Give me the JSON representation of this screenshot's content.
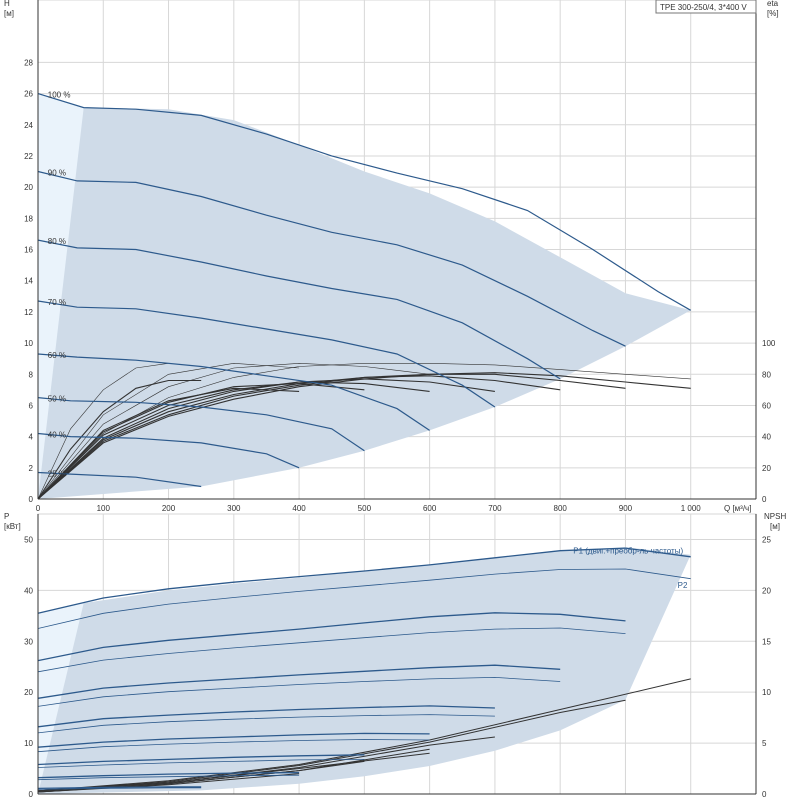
{
  "model_label": "TPE 300-250/4, 3*400 V",
  "colors": {
    "envelope": "#cfdbe8",
    "envelope_light": "#eaf3fb",
    "curve": "#2d5a8c",
    "eff": "#333333",
    "grid": "#d7d7d7"
  },
  "chart_data": [
    {
      "type": "line",
      "name": "qh",
      "left_axis": {
        "label": "H",
        "unit": "[м]",
        "ticks": [
          0,
          2,
          4,
          6,
          8,
          10,
          12,
          14,
          16,
          18,
          20,
          22,
          24,
          26,
          28
        ]
      },
      "right_axis": {
        "label": "eta",
        "unit": "[%]",
        "ticks": [
          0,
          20,
          40,
          60,
          80,
          100
        ]
      },
      "x_axis": {
        "label": "Q [м³/ч]",
        "ticks": [
          "0",
          "100",
          "200",
          "300",
          "400",
          "500",
          "600",
          "700",
          "800",
          "900",
          "1 000"
        ],
        "range": [
          0,
          1100
        ]
      },
      "envelope": [
        [
          0,
          0
        ],
        [
          250,
          0.8
        ],
        [
          400,
          2.0
        ],
        [
          500,
          3.1
        ],
        [
          600,
          4.4
        ],
        [
          700,
          5.9
        ],
        [
          800,
          7.7
        ],
        [
          900,
          9.8
        ],
        [
          1000,
          12.1
        ],
        [
          900,
          13.2
        ],
        [
          800,
          15.5
        ],
        [
          700,
          17.8
        ],
        [
          600,
          19.6
        ],
        [
          500,
          21.0
        ],
        [
          400,
          22.7
        ],
        [
          300,
          24.3
        ],
        [
          200,
          25.0
        ],
        [
          70,
          25.1
        ],
        [
          0,
          26.0
        ]
      ],
      "envelope_light": [
        [
          0,
          0
        ],
        [
          70,
          25.1
        ],
        [
          0,
          26.0
        ]
      ],
      "speed_curves": [
        {
          "label": "100 %",
          "x": [
            0,
            70,
            150,
            250,
            350,
            450,
            550,
            650,
            750,
            850,
            950,
            1000
          ],
          "y": [
            26.0,
            25.1,
            25.0,
            24.6,
            23.4,
            22.0,
            20.9,
            19.9,
            18.5,
            16.0,
            13.3,
            12.1
          ]
        },
        {
          "label": "90 %",
          "x": [
            0,
            60,
            150,
            250,
            350,
            450,
            550,
            650,
            750,
            850,
            900
          ],
          "y": [
            21.0,
            20.4,
            20.3,
            19.4,
            18.2,
            17.1,
            16.3,
            15.0,
            13.0,
            10.8,
            9.8
          ]
        },
        {
          "label": "80 %",
          "x": [
            0,
            60,
            150,
            250,
            350,
            450,
            550,
            650,
            750,
            800
          ],
          "y": [
            16.6,
            16.1,
            16.0,
            15.2,
            14.3,
            13.5,
            12.8,
            11.3,
            9.0,
            7.7
          ]
        },
        {
          "label": "70 %",
          "x": [
            0,
            60,
            150,
            250,
            350,
            450,
            550,
            650,
            700
          ],
          "y": [
            12.7,
            12.3,
            12.2,
            11.6,
            10.9,
            10.2,
            9.3,
            7.3,
            5.9
          ]
        },
        {
          "label": "60 %",
          "x": [
            0,
            60,
            150,
            250,
            350,
            450,
            550,
            600
          ],
          "y": [
            9.3,
            9.1,
            8.9,
            8.5,
            7.9,
            7.3,
            5.8,
            4.4
          ]
        },
        {
          "label": "50 %",
          "x": [
            0,
            50,
            150,
            250,
            350,
            450,
            500
          ],
          "y": [
            6.5,
            6.3,
            6.2,
            5.9,
            5.4,
            4.5,
            3.1
          ]
        },
        {
          "label": "40 %",
          "x": [
            0,
            50,
            150,
            250,
            350,
            400
          ],
          "y": [
            4.2,
            4.0,
            3.9,
            3.6,
            2.9,
            2.0
          ]
        },
        {
          "label": "25 %",
          "x": [
            0,
            50,
            150,
            250
          ],
          "y": [
            1.7,
            1.6,
            1.4,
            0.8
          ]
        }
      ],
      "efficiency_curves": [
        {
          "x": [
            0,
            50,
            100,
            150,
            200,
            250
          ],
          "y": [
            0,
            3.2,
            5.6,
            7.1,
            7.6,
            7.6
          ]
        },
        {
          "x": [
            0,
            100,
            200,
            300,
            400
          ],
          "y": [
            0,
            4.4,
            6.3,
            7.1,
            6.9
          ]
        },
        {
          "x": [
            0,
            100,
            200,
            300,
            400,
            500
          ],
          "y": [
            0,
            4.3,
            6.2,
            7.2,
            7.4,
            7.0
          ]
        },
        {
          "x": [
            0,
            100,
            200,
            300,
            400,
            500,
            600
          ],
          "y": [
            0,
            4.1,
            6.0,
            7.0,
            7.5,
            7.4,
            6.9
          ]
        },
        {
          "x": [
            0,
            100,
            200,
            300,
            400,
            500,
            600,
            700
          ],
          "y": [
            0,
            3.9,
            5.8,
            6.9,
            7.5,
            7.7,
            7.5,
            6.9
          ]
        },
        {
          "x": [
            0,
            100,
            200,
            300,
            400,
            500,
            600,
            700,
            800
          ],
          "y": [
            0,
            3.8,
            5.6,
            6.7,
            7.4,
            7.8,
            7.9,
            7.6,
            7.0
          ]
        },
        {
          "x": [
            0,
            100,
            200,
            300,
            400,
            500,
            600,
            700,
            800,
            900
          ],
          "y": [
            0,
            3.7,
            5.4,
            6.6,
            7.3,
            7.8,
            8.0,
            8.0,
            7.6,
            7.1
          ]
        },
        {
          "x": [
            0,
            100,
            200,
            300,
            400,
            500,
            600,
            700,
            800,
            900,
            1000
          ],
          "y": [
            0,
            3.6,
            5.3,
            6.4,
            7.2,
            7.7,
            8.0,
            8.1,
            7.9,
            7.5,
            7.1
          ]
        },
        {
          "x": [
            0,
            50,
            100,
            150,
            200
          ],
          "y": [
            0,
            4.5,
            7.0,
            8.4,
            8.7
          ]
        },
        {
          "x": [
            0,
            100,
            200,
            300,
            400
          ],
          "y": [
            0,
            5.4,
            8.0,
            8.7,
            8.4
          ]
        },
        {
          "x": [
            0,
            100,
            200,
            300,
            400,
            500,
            600
          ],
          "y": [
            0,
            4.8,
            7.2,
            8.4,
            8.7,
            8.5,
            8.0
          ]
        },
        {
          "x": [
            0,
            100,
            200,
            300,
            400,
            500,
            600,
            700,
            800,
            900,
            1000
          ],
          "y": [
            0,
            4.2,
            6.5,
            7.8,
            8.5,
            8.7,
            8.7,
            8.6,
            8.3,
            8.0,
            7.7
          ]
        }
      ]
    },
    {
      "type": "line",
      "name": "power",
      "left_axis": {
        "label": "P",
        "unit": "[кВт]",
        "ticks": [
          0,
          10,
          20,
          30,
          40,
          50
        ]
      },
      "right_axis": {
        "label": "NPSH",
        "unit": "[м]",
        "ticks": [
          0,
          5,
          10,
          15,
          20,
          25
        ]
      },
      "x_axis": {
        "ticks": [],
        "range": [
          0,
          1100
        ]
      },
      "envelope": [
        [
          0,
          0
        ],
        [
          250,
          0.7
        ],
        [
          400,
          2.0
        ],
        [
          500,
          3.5
        ],
        [
          600,
          5.5
        ],
        [
          700,
          8.5
        ],
        [
          800,
          12.5
        ],
        [
          900,
          18.5
        ],
        [
          1000,
          47.0
        ],
        [
          900,
          48.5
        ],
        [
          800,
          47.8
        ],
        [
          700,
          46.5
        ],
        [
          600,
          45.0
        ],
        [
          500,
          43.8
        ],
        [
          400,
          42.5
        ],
        [
          300,
          41.3
        ],
        [
          200,
          40.0
        ],
        [
          70,
          37.5
        ],
        [
          0,
          35.5
        ]
      ],
      "envelope_light": [
        [
          0,
          0
        ],
        [
          70,
          37.5
        ],
        [
          0,
          35.5
        ]
      ],
      "series_labels": [
        {
          "text": "P1 (двиг.+преобр-ль частоты)",
          "x": 820,
          "y": 47.2
        },
        {
          "text": "P2",
          "x": 980,
          "y": 40.5
        }
      ],
      "p1_curves": [
        {
          "x": [
            0,
            100,
            200,
            300,
            400,
            500,
            600,
            700,
            800,
            900,
            1000
          ],
          "y": [
            35.5,
            38.5,
            40.3,
            41.6,
            42.7,
            43.8,
            45.0,
            46.4,
            47.8,
            48.3,
            46.6
          ]
        },
        {
          "x": [
            0,
            100,
            200,
            300,
            400,
            500,
            600,
            700,
            800,
            900
          ],
          "y": [
            26.2,
            28.8,
            30.2,
            31.3,
            32.4,
            33.6,
            34.8,
            35.6,
            35.3,
            34.0
          ]
        },
        {
          "x": [
            0,
            100,
            200,
            300,
            400,
            500,
            600,
            700,
            800
          ],
          "y": [
            18.8,
            20.8,
            21.8,
            22.6,
            23.4,
            24.1,
            24.8,
            25.3,
            24.5
          ]
        },
        {
          "x": [
            0,
            100,
            200,
            300,
            400,
            500,
            600,
            700
          ],
          "y": [
            13.2,
            14.8,
            15.5,
            16.1,
            16.6,
            17.0,
            17.3,
            16.9
          ]
        },
        {
          "x": [
            0,
            100,
            200,
            300,
            400,
            500,
            600
          ],
          "y": [
            9.2,
            10.2,
            10.8,
            11.2,
            11.6,
            11.9,
            11.8
          ]
        },
        {
          "x": [
            0,
            100,
            200,
            300,
            400,
            500
          ],
          "y": [
            5.8,
            6.4,
            6.8,
            7.2,
            7.5,
            7.7
          ]
        },
        {
          "x": [
            0,
            100,
            200,
            300,
            400
          ],
          "y": [
            3.2,
            3.6,
            3.9,
            4.1,
            4.2
          ]
        },
        {
          "x": [
            0,
            100,
            200,
            250
          ],
          "y": [
            1.1,
            1.3,
            1.4,
            1.4
          ]
        }
      ],
      "p2_curves": [
        {
          "x": [
            0,
            100,
            200,
            300,
            400,
            500,
            600,
            700,
            800,
            900,
            1000
          ],
          "y": [
            32.5,
            35.5,
            37.3,
            38.6,
            39.8,
            40.9,
            42.0,
            43.2,
            44.1,
            44.2,
            42.3
          ]
        },
        {
          "x": [
            0,
            100,
            200,
            300,
            400,
            500,
            600,
            700,
            800,
            900
          ],
          "y": [
            24.0,
            26.3,
            27.6,
            28.7,
            29.7,
            30.7,
            31.7,
            32.4,
            32.6,
            31.5
          ]
        },
        {
          "x": [
            0,
            100,
            200,
            300,
            400,
            500,
            600,
            700,
            800
          ],
          "y": [
            17.2,
            19.1,
            20.1,
            20.8,
            21.5,
            22.1,
            22.6,
            22.9,
            22.1
          ]
        },
        {
          "x": [
            0,
            100,
            200,
            300,
            400,
            500,
            600,
            700
          ],
          "y": [
            12.0,
            13.5,
            14.2,
            14.7,
            15.1,
            15.4,
            15.6,
            15.3
          ]
        },
        {
          "x": [
            0,
            100,
            200,
            300,
            400,
            500,
            600
          ],
          "y": [
            8.3,
            9.3,
            9.8,
            10.2,
            10.5,
            10.7,
            10.6
          ]
        },
        {
          "x": [
            0,
            100,
            200,
            300,
            400,
            500
          ],
          "y": [
            5.2,
            5.7,
            6.1,
            6.4,
            6.7,
            6.8
          ]
        },
        {
          "x": [
            0,
            100,
            200,
            300,
            400
          ],
          "y": [
            2.8,
            3.2,
            3.4,
            3.6,
            3.7
          ]
        },
        {
          "x": [
            0,
            100,
            200,
            250
          ],
          "y": [
            0.9,
            1.1,
            1.2,
            1.2
          ]
        }
      ],
      "npsh_curves": [
        {
          "x": [
            0,
            200,
            400,
            600,
            800,
            1000
          ],
          "y": [
            0.3,
            1.3,
            2.9,
            5.3,
            8.3,
            11.3
          ]
        },
        {
          "x": [
            0,
            200,
            400,
            600,
            800,
            900
          ],
          "y": [
            0.3,
            1.2,
            2.8,
            5.1,
            8.0,
            9.2
          ]
        },
        {
          "x": [
            0,
            200,
            400,
            600,
            700
          ],
          "y": [
            0.3,
            1.1,
            2.6,
            4.8,
            5.6
          ]
        },
        {
          "x": [
            0,
            200,
            400,
            600
          ],
          "y": [
            0.2,
            1.0,
            2.3,
            4.4
          ]
        },
        {
          "x": [
            0,
            200,
            400
          ],
          "y": [
            0.2,
            0.9,
            2.0
          ]
        },
        {
          "x": [
            0,
            200,
            400,
            500
          ],
          "y": [
            0.2,
            1.0,
            2.3,
            3.2
          ]
        },
        {
          "x": [
            0,
            200,
            400,
            600
          ],
          "y": [
            0.3,
            1.1,
            2.5,
            4.0
          ]
        }
      ]
    }
  ]
}
